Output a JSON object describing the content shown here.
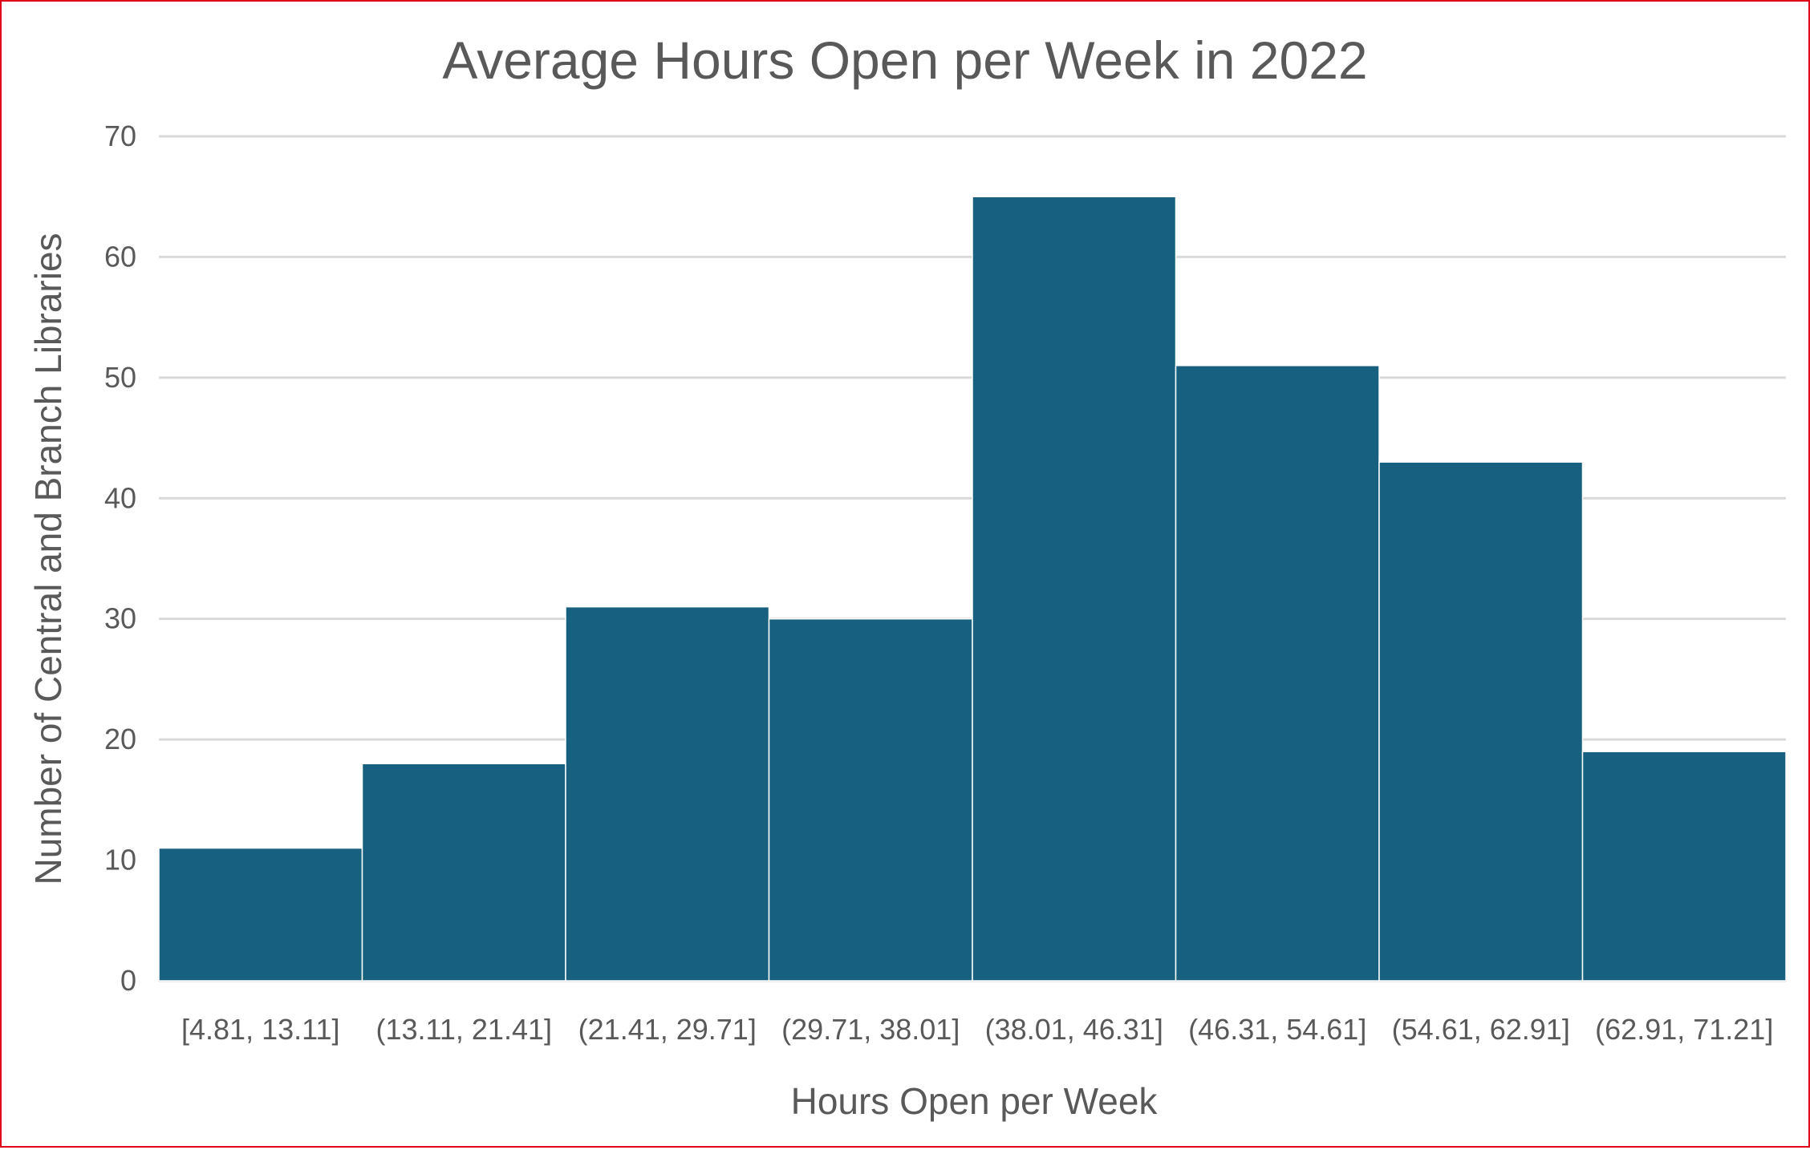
{
  "chart_data": {
    "type": "bar",
    "title": "Average Hours Open per Week in 2022",
    "xlabel": "Hours Open per Week",
    "ylabel": "Number of Central and Branch Libraries",
    "categories": [
      "[4.81, 13.11]",
      "(13.11, 21.41]",
      "(21.41, 29.71]",
      "(29.71, 38.01]",
      "(38.01, 46.31]",
      "(46.31, 54.61]",
      "(54.61, 62.91]",
      "(62.91, 71.21]"
    ],
    "values": [
      11,
      18,
      31,
      30,
      65,
      51,
      43,
      19
    ],
    "ylim": [
      0,
      70
    ],
    "yticks": [
      "0",
      "10",
      "20",
      "30",
      "40",
      "50",
      "60",
      "70"
    ],
    "grid": true,
    "legend": "none",
    "bar_color": "#17607f",
    "border_color": "#e0001b"
  }
}
